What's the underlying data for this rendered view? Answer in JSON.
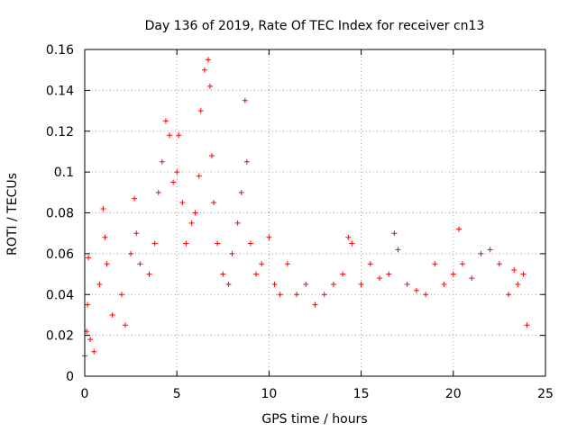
{
  "chart_data": {
    "type": "scatter",
    "title": "Day 136 of 2019, Rate Of TEC Index for receiver cn13",
    "xlabel": "GPS time / hours",
    "ylabel": "ROTI / TECUs",
    "xlim": [
      0,
      25
    ],
    "ylim": [
      0,
      0.16
    ],
    "xticks": [
      "0",
      "5",
      "10",
      "15",
      "20",
      "25"
    ],
    "yticks": [
      "0",
      "0.02",
      "0.04",
      "0.06",
      "0.08",
      "0.1",
      "0.12",
      "0.14",
      "0.16"
    ],
    "grid": true,
    "marker": "+",
    "color": "#ff0000",
    "series": [
      {
        "name": "",
        "points": [
          [
            0.0,
            0.01
          ],
          [
            0.1,
            0.022
          ],
          [
            0.15,
            0.035
          ],
          [
            0.2,
            0.058
          ],
          [
            0.3,
            0.018
          ],
          [
            0.5,
            0.012
          ],
          [
            0.8,
            0.045
          ],
          [
            1.0,
            0.082
          ],
          [
            1.1,
            0.068
          ],
          [
            1.2,
            0.055
          ],
          [
            1.5,
            0.03
          ],
          [
            2.0,
            0.04
          ],
          [
            2.2,
            0.025
          ],
          [
            2.5,
            0.06
          ],
          [
            2.7,
            0.087
          ],
          [
            2.8,
            0.07
          ],
          [
            3.0,
            0.055
          ],
          [
            3.5,
            0.05
          ],
          [
            3.8,
            0.065
          ],
          [
            4.0,
            0.09
          ],
          [
            4.2,
            0.105
          ],
          [
            4.4,
            0.125
          ],
          [
            4.6,
            0.118
          ],
          [
            4.8,
            0.095
          ],
          [
            5.0,
            0.1
          ],
          [
            5.1,
            0.118
          ],
          [
            5.3,
            0.085
          ],
          [
            5.5,
            0.065
          ],
          [
            5.8,
            0.075
          ],
          [
            6.0,
            0.08
          ],
          [
            6.2,
            0.098
          ],
          [
            6.3,
            0.13
          ],
          [
            6.5,
            0.15
          ],
          [
            6.7,
            0.155
          ],
          [
            6.8,
            0.142
          ],
          [
            6.9,
            0.108
          ],
          [
            7.0,
            0.085
          ],
          [
            7.2,
            0.065
          ],
          [
            7.5,
            0.05
          ],
          [
            7.8,
            0.045
          ],
          [
            8.0,
            0.06
          ],
          [
            8.3,
            0.075
          ],
          [
            8.5,
            0.09
          ],
          [
            8.7,
            0.135
          ],
          [
            8.8,
            0.105
          ],
          [
            9.0,
            0.065
          ],
          [
            9.3,
            0.05
          ],
          [
            9.6,
            0.055
          ],
          [
            10.0,
            0.068
          ],
          [
            10.3,
            0.045
          ],
          [
            10.6,
            0.04
          ],
          [
            11.0,
            0.055
          ],
          [
            11.5,
            0.04
          ],
          [
            12.0,
            0.045
          ],
          [
            12.5,
            0.035
          ],
          [
            13.0,
            0.04
          ],
          [
            13.5,
            0.045
          ],
          [
            14.0,
            0.05
          ],
          [
            14.3,
            0.068
          ],
          [
            14.5,
            0.065
          ],
          [
            15.0,
            0.045
          ],
          [
            15.5,
            0.055
          ],
          [
            16.0,
            0.048
          ],
          [
            16.5,
            0.05
          ],
          [
            16.8,
            0.07
          ],
          [
            17.0,
            0.062
          ],
          [
            17.5,
            0.045
          ],
          [
            18.0,
            0.042
          ],
          [
            18.5,
            0.04
          ],
          [
            19.0,
            0.055
          ],
          [
            19.5,
            0.045
          ],
          [
            20.0,
            0.05
          ],
          [
            20.3,
            0.072
          ],
          [
            20.5,
            0.055
          ],
          [
            21.0,
            0.048
          ],
          [
            21.5,
            0.06
          ],
          [
            22.0,
            0.062
          ],
          [
            22.5,
            0.055
          ],
          [
            23.0,
            0.04
          ],
          [
            23.3,
            0.052
          ],
          [
            23.5,
            0.045
          ],
          [
            23.8,
            0.05
          ],
          [
            24.0,
            0.025
          ]
        ]
      }
    ]
  }
}
